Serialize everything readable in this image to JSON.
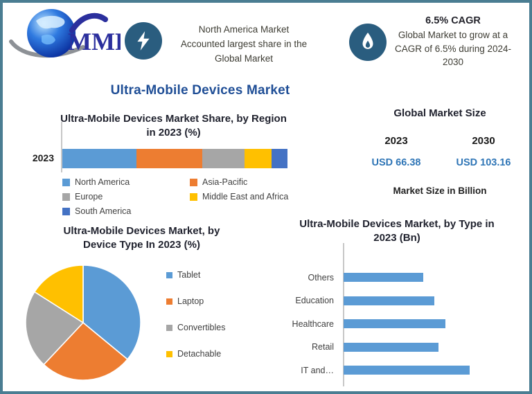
{
  "colors": {
    "accent_blue": "#1F4E96",
    "value_blue": "#2E75B6",
    "badge_blue": "#2A5D7F",
    "border_teal": "#4A7D92",
    "bar_blue": "#5B9BD5",
    "orange": "#ED7D31",
    "gray": "#A6A6A6",
    "yellow": "#FFC000",
    "dark_blue": "#4472C4"
  },
  "header": {
    "logo_text": "MMR",
    "claim_lines": [
      "North America Market",
      "Accounted largest share in the",
      "Global Market"
    ],
    "cagr_title": "6.5% CAGR",
    "cagr_lines": [
      "Global Market to grow at a",
      "CAGR of 6.5% during 2024-",
      "2030"
    ]
  },
  "main_title": "Ultra-Mobile Devices Market",
  "market_size": {
    "title": "Global Market Size",
    "years": [
      "2023",
      "2030"
    ],
    "values": [
      "USD 66.38",
      "USD 103.16"
    ],
    "note": "Market Size in Billion"
  },
  "chart_data": [
    {
      "type": "bar",
      "subtype": "stacked-horizontal",
      "title": "Ultra-Mobile Devices Market Share, by Region in 2023 (%)",
      "title_lines": [
        "Ultra-Mobile Devices Market Share, by Region",
        "in 2023 (%)"
      ],
      "categories": [
        "2023"
      ],
      "series": [
        {
          "name": "North America",
          "values": [
            33
          ],
          "color": "#5B9BD5"
        },
        {
          "name": "Asia-Pacific",
          "values": [
            29
          ],
          "color": "#ED7D31"
        },
        {
          "name": "Europe",
          "values": [
            19
          ],
          "color": "#A6A6A6"
        },
        {
          "name": "Middle East and Africa",
          "values": [
            12
          ],
          "color": "#FFC000"
        },
        {
          "name": "South America",
          "values": [
            7
          ],
          "color": "#4472C4"
        }
      ],
      "xlim": [
        0,
        100
      ],
      "legend_position": "bottom",
      "grid": false
    },
    {
      "type": "pie",
      "title": "Ultra-Mobile Devices Market, by Device Type In 2023 (%)",
      "title_lines": [
        "Ultra-Mobile Devices Market, by",
        "Device Type In 2023 (%)"
      ],
      "categories": [
        "Tablet",
        "Laptop",
        "Convertibles",
        "Detachable"
      ],
      "values": [
        36,
        26,
        22,
        16
      ],
      "colors": [
        "#5B9BD5",
        "#ED7D31",
        "#A6A6A6",
        "#FFC000"
      ],
      "start_angle_deg": 0,
      "legend_position": "right"
    },
    {
      "type": "bar",
      "subtype": "horizontal",
      "title": "Ultra-Mobile Devices Market, by Type in 2023 (Bn)",
      "title_lines": [
        "Ultra-Mobile Devices Market, by Type in",
        "2023 (Bn)"
      ],
      "categories": [
        "Others",
        "Education",
        "Healthcare",
        "Retail",
        "IT and…"
      ],
      "values": [
        6.3,
        7.2,
        8.1,
        7.5,
        10
      ],
      "bar_color": "#5B9BD5",
      "xlim": [
        0,
        10
      ],
      "grid": false,
      "legend_position": "none"
    }
  ]
}
